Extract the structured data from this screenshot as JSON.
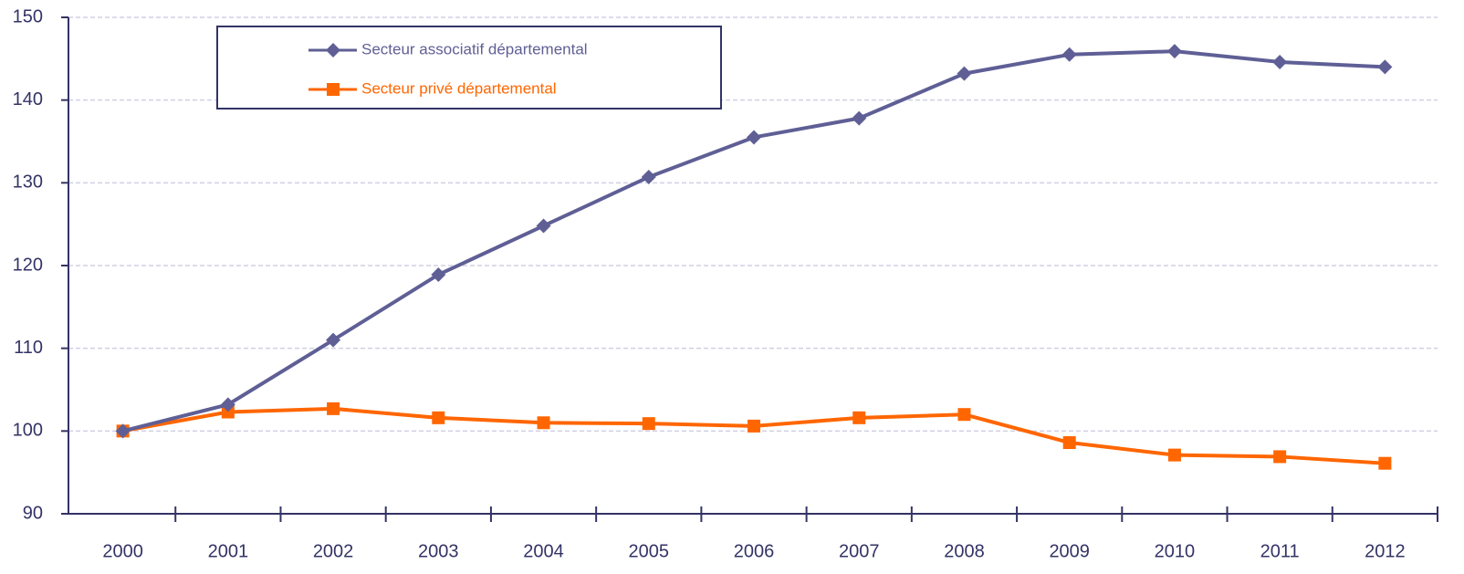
{
  "chart_data": {
    "type": "line",
    "categories": [
      "2000",
      "2001",
      "2002",
      "2003",
      "2004",
      "2005",
      "2006",
      "2007",
      "2008",
      "2009",
      "2010",
      "2011",
      "2012"
    ],
    "series": [
      {
        "name": "Secteur associatif départemental",
        "color": "#5f5f96",
        "marker": "diamond",
        "values": [
          100,
          103.2,
          111,
          118.9,
          124.8,
          130.7,
          135.5,
          137.8,
          143.2,
          145.5,
          145.9,
          144.6,
          144.0
        ]
      },
      {
        "name": "Secteur privé départemental",
        "color": "#ff6600",
        "marker": "square",
        "values": [
          100,
          102.3,
          102.7,
          101.6,
          101.0,
          100.9,
          100.6,
          101.6,
          102.0,
          98.6,
          97.1,
          96.9,
          96.1
        ]
      }
    ],
    "ylim": [
      90,
      150
    ],
    "yticks": [
      90,
      100,
      110,
      120,
      130,
      140,
      150
    ],
    "grid": true,
    "legend": "upper left"
  }
}
